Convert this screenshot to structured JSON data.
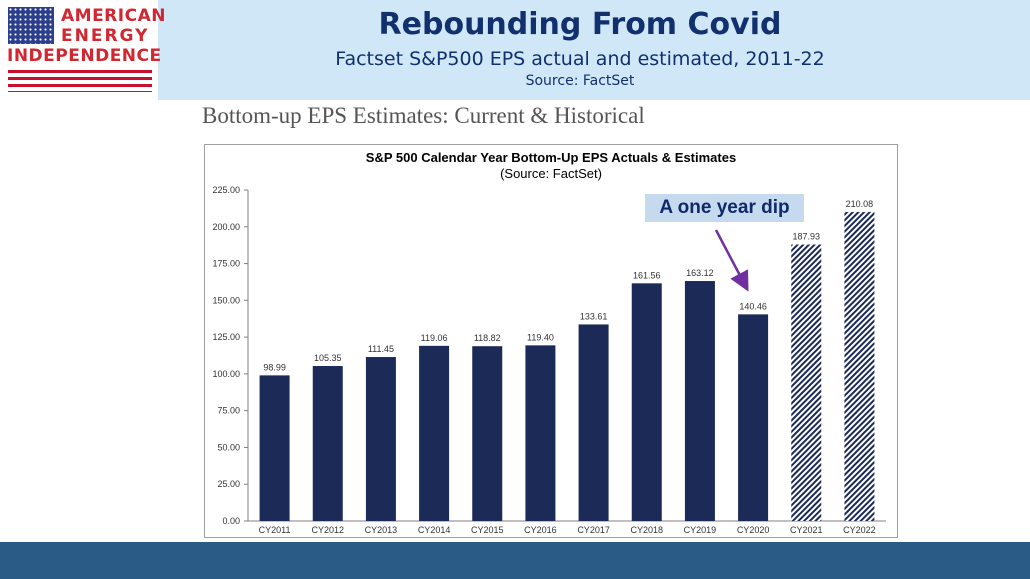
{
  "header": {
    "logo": {
      "line1": "AMERICAN",
      "line2": "ENERGY",
      "line3": "INDEPENDENCE"
    },
    "title": "Rebounding From Covid",
    "subtitle": "Factset S&P500 EPS actual and estimated, 2011-22",
    "source": "Source: FactSet"
  },
  "section_heading": "Bottom-up EPS Estimates: Current & Historical",
  "colors": {
    "bar_actual": "#1b2a57",
    "bar_estimate_hatch": "#1b2a57",
    "callout_bg": "#c5d9ef",
    "arrow": "#7030a0",
    "footer": "#2a5a86",
    "header_bg": "#cfe7f7"
  },
  "annotation": {
    "text": "A one year dip"
  },
  "chart_data": {
    "type": "bar",
    "title": "S&P 500 Calendar Year Bottom-Up EPS Actuals & Estimates",
    "subtitle": "(Source: FactSet)",
    "xlabel": "",
    "ylabel": "",
    "categories": [
      "CY2011",
      "CY2012",
      "CY2013",
      "CY2014",
      "CY2015",
      "CY2016",
      "CY2017",
      "CY2018",
      "CY2019",
      "CY2020",
      "CY2021",
      "CY2022"
    ],
    "values": [
      98.99,
      105.35,
      111.45,
      119.06,
      118.82,
      119.4,
      133.61,
      161.56,
      163.12,
      140.46,
      187.93,
      210.08
    ],
    "value_labels": [
      "98.99",
      "105.35",
      "111.45",
      "119.06",
      "118.82",
      "119.40",
      "133.61",
      "161.56",
      "163.12",
      "140.46",
      "187.93",
      "210.08"
    ],
    "estimated": [
      false,
      false,
      false,
      false,
      false,
      false,
      false,
      false,
      false,
      false,
      true,
      true
    ],
    "ylim": [
      0,
      225
    ],
    "yticks": [
      "0.00",
      "25.00",
      "50.00",
      "75.00",
      "100.00",
      "125.00",
      "150.00",
      "175.00",
      "200.00",
      "225.00"
    ],
    "grid": false,
    "legend": "none"
  }
}
